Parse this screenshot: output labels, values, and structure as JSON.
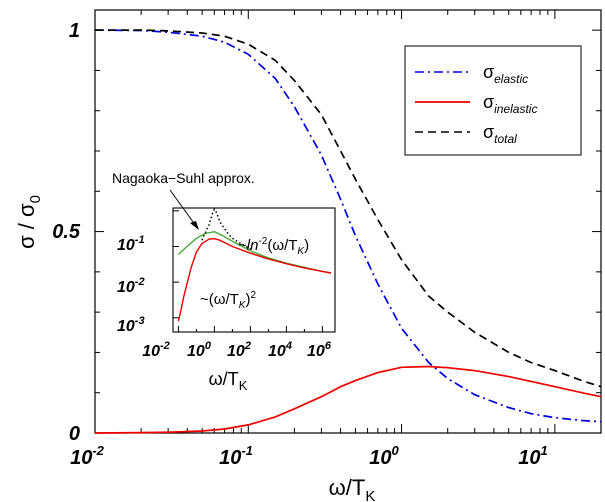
{
  "chart_data": [
    {
      "type": "line",
      "role": "main",
      "xlabel": "ω/T_K",
      "ylabel": "σ / σ_0",
      "x_scale": "log",
      "xlim": [
        0.01,
        20
      ],
      "ylim": [
        0,
        1.05
      ],
      "x_ticks": [
        {
          "value": 0.01,
          "base": "10",
          "exp": "-2"
        },
        {
          "value": 0.1,
          "base": "10",
          "exp": "-1"
        },
        {
          "value": 1,
          "base": "10",
          "exp": "0"
        },
        {
          "value": 10,
          "base": "10",
          "exp": "1"
        }
      ],
      "y_ticks": [
        {
          "value": 0,
          "label": "0"
        },
        {
          "value": 0.5,
          "label": "0.5"
        },
        {
          "value": 1,
          "label": "1"
        }
      ],
      "legend": {
        "placement": "top-right"
      },
      "series": [
        {
          "name": "σ_elastic",
          "base": "σ",
          "sub": "elastic",
          "color": "#0000dd",
          "dash": "dashdot",
          "points": [
            [
              0.01,
              1.0
            ],
            [
              0.02,
              0.999
            ],
            [
              0.03,
              0.995
            ],
            [
              0.05,
              0.985
            ],
            [
              0.07,
              0.97
            ],
            [
              0.1,
              0.94
            ],
            [
              0.15,
              0.88
            ],
            [
              0.2,
              0.81
            ],
            [
              0.3,
              0.69
            ],
            [
              0.4,
              0.58
            ],
            [
              0.5,
              0.49
            ],
            [
              0.7,
              0.37
            ],
            [
              1.0,
              0.26
            ],
            [
              1.5,
              0.175
            ],
            [
              2.0,
              0.135
            ],
            [
              3.0,
              0.095
            ],
            [
              5.0,
              0.063
            ],
            [
              7.0,
              0.048
            ],
            [
              10.0,
              0.038
            ],
            [
              15.0,
              0.031
            ],
            [
              20.0,
              0.028
            ]
          ]
        },
        {
          "name": "σ_inelastic",
          "base": "σ",
          "sub": "inelastic",
          "color": "#ee0000",
          "dash": "solid",
          "points": [
            [
              0.01,
              0.0
            ],
            [
              0.02,
              0.001
            ],
            [
              0.03,
              0.002
            ],
            [
              0.05,
              0.005
            ],
            [
              0.07,
              0.01
            ],
            [
              0.1,
              0.02
            ],
            [
              0.15,
              0.04
            ],
            [
              0.2,
              0.06
            ],
            [
              0.3,
              0.09
            ],
            [
              0.4,
              0.115
            ],
            [
              0.5,
              0.13
            ],
            [
              0.7,
              0.15
            ],
            [
              1.0,
              0.163
            ],
            [
              1.5,
              0.165
            ],
            [
              2.0,
              0.162
            ],
            [
              3.0,
              0.155
            ],
            [
              5.0,
              0.14
            ],
            [
              7.0,
              0.128
            ],
            [
              10.0,
              0.115
            ],
            [
              15.0,
              0.1
            ],
            [
              20.0,
              0.09
            ]
          ]
        },
        {
          "name": "σ_total",
          "base": "σ",
          "sub": "total",
          "color": "#000000",
          "dash": "dashed",
          "points": [
            [
              0.01,
              1.0
            ],
            [
              0.02,
              1.0
            ],
            [
              0.03,
              0.998
            ],
            [
              0.05,
              0.993
            ],
            [
              0.07,
              0.985
            ],
            [
              0.1,
              0.965
            ],
            [
              0.15,
              0.925
            ],
            [
              0.2,
              0.875
            ],
            [
              0.3,
              0.79
            ],
            [
              0.4,
              0.7
            ],
            [
              0.5,
              0.63
            ],
            [
              0.7,
              0.53
            ],
            [
              1.0,
              0.43
            ],
            [
              1.5,
              0.34
            ],
            [
              2.0,
              0.3
            ],
            [
              3.0,
              0.25
            ],
            [
              5.0,
              0.2
            ],
            [
              7.0,
              0.175
            ],
            [
              10.0,
              0.155
            ],
            [
              15.0,
              0.13
            ],
            [
              20.0,
              0.115
            ]
          ]
        }
      ]
    },
    {
      "type": "line",
      "role": "inset",
      "xlabel": "ω/T_K",
      "x_scale": "log",
      "y_scale": "log",
      "xlim": [
        0.005,
        5000000
      ],
      "ylim": [
        0.0004,
        1.2
      ],
      "x_ticks": [
        {
          "value": 0.01,
          "base": "10",
          "exp": "-2"
        },
        {
          "value": 1,
          "base": "10",
          "exp": "0"
        },
        {
          "value": 100,
          "base": "10",
          "exp": "2"
        },
        {
          "value": 10000,
          "base": "10",
          "exp": "4"
        },
        {
          "value": 1000000,
          "base": "10",
          "exp": "6"
        }
      ],
      "y_ticks": [
        {
          "value": 0.1,
          "base": "10",
          "exp": "-1"
        },
        {
          "value": 0.01,
          "base": "10",
          "exp": "-2"
        },
        {
          "value": 0.001,
          "base": "10",
          "exp": "-3"
        }
      ],
      "series": [
        {
          "color": "#44aa33",
          "dash": "solid",
          "points": [
            [
              0.01,
              0.06
            ],
            [
              0.03,
              0.1
            ],
            [
              0.1,
              0.17
            ],
            [
              0.3,
              0.23
            ],
            [
              1,
              0.26
            ],
            [
              3,
              0.2
            ],
            [
              10,
              0.14
            ],
            [
              100,
              0.075
            ],
            [
              1000,
              0.048
            ],
            [
              10000,
              0.034
            ],
            [
              100000,
              0.026
            ],
            [
              1000000,
              0.02
            ],
            [
              3000000,
              0.018
            ]
          ]
        },
        {
          "color": "#000000",
          "dash": "dotted",
          "points": [
            [
              0.2,
              0.15
            ],
            [
              0.5,
              0.4
            ],
            [
              0.8,
              0.9
            ],
            [
              1.0,
              1.1
            ],
            [
              1.3,
              0.9
            ],
            [
              2,
              0.5
            ],
            [
              5,
              0.25
            ],
            [
              10,
              0.17
            ],
            [
              30,
              0.12
            ],
            [
              100,
              0.085
            ]
          ]
        },
        {
          "color": "#ee0000",
          "dash": "solid",
          "points": [
            [
              0.01,
              0.0008
            ],
            [
              0.015,
              0.002
            ],
            [
              0.02,
              0.004
            ],
            [
              0.03,
              0.009
            ],
            [
              0.05,
              0.025
            ],
            [
              0.1,
              0.07
            ],
            [
              0.2,
              0.12
            ],
            [
              0.5,
              0.16
            ],
            [
              1,
              0.165
            ],
            [
              2,
              0.15
            ],
            [
              5,
              0.12
            ],
            [
              10,
              0.1
            ],
            [
              100,
              0.065
            ],
            [
              1000,
              0.045
            ],
            [
              10000,
              0.033
            ],
            [
              100000,
              0.025
            ],
            [
              1000000,
              0.02
            ],
            [
              3000000,
              0.018
            ]
          ]
        }
      ],
      "annotations": {
        "high": {
          "prefix": "~",
          "fn": "ln",
          "exp": "-2",
          "arg": "(ω/T",
          "arg_sub": "K",
          "close": ")"
        },
        "low": {
          "prefix": "~(ω/T",
          "sub": "K",
          "close": ")",
          "exp": "2"
        }
      }
    }
  ],
  "callout": "Nagaoka−Suhl approx."
}
